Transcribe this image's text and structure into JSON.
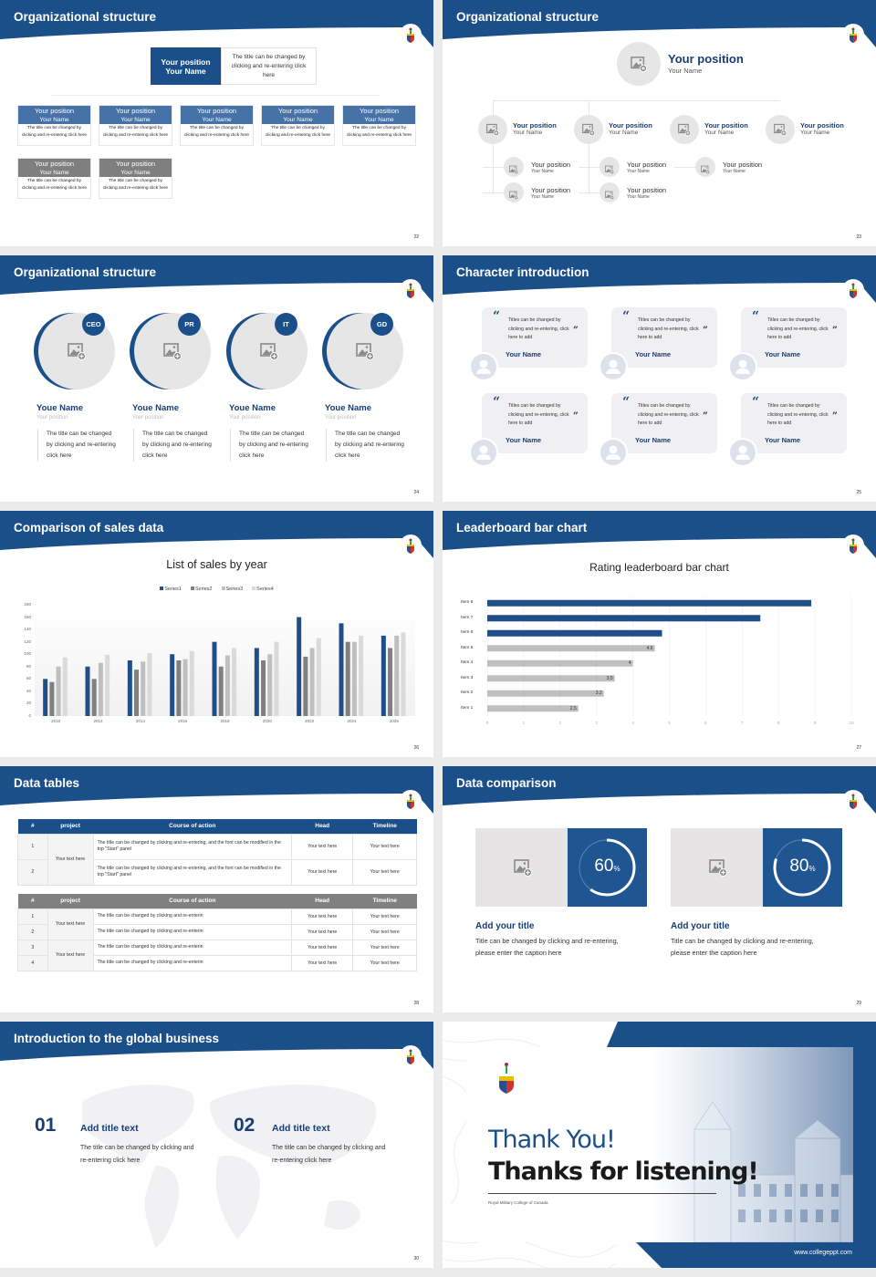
{
  "colors": {
    "brand": "#1b4f8a",
    "navy": "#173e75",
    "gray": "#7f7f7f"
  },
  "s22": {
    "title": "Organizational structure",
    "page": "22",
    "top": {
      "position": "Your position",
      "name": "Your Name",
      "desc": "The title can be changed by clicking and re-entering click here"
    },
    "members": [
      {
        "position": "Your position",
        "name": "Your Name",
        "desc": "The title can be changed by clicking and re-entering click here",
        "tone": "blue"
      },
      {
        "position": "Your position",
        "name": "Your Name",
        "desc": "The title can be changed by clicking and re-entering click here",
        "tone": "blue"
      },
      {
        "position": "Your position",
        "name": "Your Name",
        "desc": "The title can be changed by clicking and re-entering click here",
        "tone": "blue"
      },
      {
        "position": "Your position",
        "name": "Your Name",
        "desc": "The title can be changed by clicking and re-entering click here",
        "tone": "blue"
      },
      {
        "position": "Your position",
        "name": "Your Name",
        "desc": "The title can be changed by clicking and re-entering click here",
        "tone": "blue"
      },
      {
        "position": "Your position",
        "name": "Your Name",
        "desc": "The title can be changed by clicking and re-entering click here",
        "tone": "gray"
      },
      {
        "position": "Your position",
        "name": "Your Name",
        "desc": "The title can be changed by clicking and re-entering click here",
        "tone": "gray"
      }
    ]
  },
  "s23": {
    "title": "Organizational structure",
    "page": "23",
    "top": {
      "position": "Your position",
      "name": "Your Name"
    },
    "level2": [
      {
        "position": "Your position",
        "name": "Your Name"
      },
      {
        "position": "Your position",
        "name": "Your Name"
      },
      {
        "position": "Your position",
        "name": "Your Name"
      },
      {
        "position": "Your position",
        "name": "Your Name"
      }
    ],
    "level3": [
      {
        "position": "Your position",
        "name": "Your Name"
      },
      {
        "position": "Your position",
        "name": "Your Name"
      },
      {
        "position": "Your position",
        "name": "Your Name"
      },
      {
        "position": "Your position",
        "name": "Your Name"
      },
      {
        "position": "Your position",
        "name": "Your Name"
      }
    ]
  },
  "s24": {
    "title": "Organizational structure",
    "page": "24",
    "people": [
      {
        "badge": "CEO",
        "name": "Youe Name",
        "position": "Your position",
        "desc": "The title can be changed by clicking and re-entering click here"
      },
      {
        "badge": "PR",
        "name": "Youe Name",
        "position": "Your position",
        "desc": "The title can be changed by clicking and re-entering click here"
      },
      {
        "badge": "IT",
        "name": "Youe Name",
        "position": "Your position",
        "desc": "The title can be changed by clicking and re-entering click here"
      },
      {
        "badge": "GD",
        "name": "Youe Name",
        "position": "Your position",
        "desc": "The title can be changed by clicking and re-entering click here"
      }
    ]
  },
  "s25": {
    "title": "Character introduction",
    "page": "25",
    "cards": [
      {
        "quote": "Titles can be changed by clicking and re-entering, click here to add",
        "name": "Your Name"
      },
      {
        "quote": "Titles can be changed by clicking and re-entering, click here to add",
        "name": "Your Name"
      },
      {
        "quote": "Titles can be changed by clicking and re-entering, click here to add",
        "name": "Your Name"
      },
      {
        "quote": "Titles can be changed by clicking and re-entering, click here to add",
        "name": "Your Name"
      },
      {
        "quote": "Titles can be changed by clicking and re-entering, click here to add",
        "name": "Your Name"
      },
      {
        "quote": "Titles can be changed by clicking and re-entering, click here to add",
        "name": "Your Name"
      }
    ]
  },
  "s26": {
    "title": "Comparison of sales data",
    "page": "26"
  },
  "s27": {
    "title": "Leaderboard bar chart",
    "page": "27"
  },
  "chart_data": [
    {
      "type": "bar",
      "title": "List of sales by year",
      "categories": [
        "2010",
        "2012",
        "2014",
        "2016",
        "2018",
        "2020",
        "2022",
        "2024",
        "2026"
      ],
      "series": [
        {
          "name": "Series1",
          "color": "#1f4e89",
          "values": [
            60,
            80,
            90,
            100,
            120,
            110,
            160,
            150,
            130
          ]
        },
        {
          "name": "Series2",
          "color": "#808080",
          "values": [
            55,
            60,
            75,
            90,
            80,
            90,
            96,
            120,
            110
          ]
        },
        {
          "name": "Series3",
          "color": "#bfbfbf",
          "values": [
            80,
            86,
            88,
            92,
            98,
            100,
            110,
            120,
            130
          ]
        },
        {
          "name": "Series4",
          "color": "#dadada",
          "values": [
            95,
            99,
            102,
            105,
            110,
            120,
            126,
            130,
            135
          ]
        }
      ],
      "ylim": [
        0,
        180
      ],
      "yticks": [
        "0",
        "20",
        "40",
        "60",
        "80",
        "100",
        "120",
        "140",
        "160",
        "180"
      ],
      "legend": "top",
      "grid": false
    },
    {
      "type": "bar",
      "orientation": "horizontal",
      "title": "Rating leaderboard bar chart",
      "categories": [
        "Item 8",
        "Item 7",
        "Item 6",
        "Item 5",
        "Item 4",
        "Item 3",
        "Item 2",
        "Item 1"
      ],
      "values": [
        8.9,
        7.5,
        4.8,
        4.6,
        4,
        3.5,
        3.2,
        2.5
      ],
      "labels": [
        "",
        "",
        "",
        "4.6",
        "4",
        "3.5",
        "3.2",
        "2.5"
      ],
      "highlight_color": "#1f4e89",
      "base_color": "#bfbfbf",
      "xlim": [
        0,
        10
      ],
      "xticks": [
        "0",
        "1",
        "2",
        "3",
        "4",
        "5",
        "6",
        "7",
        "8",
        "9",
        "10"
      ],
      "grid": true
    }
  ],
  "s28": {
    "title": "Data tables",
    "page": "28",
    "headers": [
      "#",
      "project",
      "Course of action",
      "Head",
      "Timeline"
    ],
    "t1": {
      "project": "Your text here",
      "rows": [
        {
          "n": "1",
          "action": "The title can be changed by clicking and re-entering, and the font can be modified in the top \"Start\" panel",
          "head": "Your text here",
          "time": "Your text here"
        },
        {
          "n": "2",
          "action": "The title can be changed by clicking and re-entering, and the font can be modified in the top \"Start\" panel",
          "head": "Your text here",
          "time": "Your text here"
        }
      ]
    },
    "t2": {
      "projects": [
        "Your text here",
        "Your text here"
      ],
      "rows": [
        {
          "n": "1",
          "action": "The title can be changed by clicking and re-enterin",
          "head": "Your text here",
          "time": "Your text here"
        },
        {
          "n": "2",
          "action": "The title can be changed by clicking and re-enterin",
          "head": "Your text here",
          "time": "Your text here"
        },
        {
          "n": "3",
          "action": "The title can be changed by clicking and re-enterin",
          "head": "Your text here",
          "time": "Your text here"
        },
        {
          "n": "4",
          "action": "The title can be changed by clicking and re-enterin",
          "head": "Your text here",
          "time": "Your text here"
        }
      ]
    }
  },
  "s29": {
    "title": "Data comparison",
    "page": "29",
    "items": [
      {
        "percent": 60,
        "value": "60",
        "unit": "%",
        "title": "Add your title",
        "desc": "Title can be changed by clicking and re-entering, please enter the caption here"
      },
      {
        "percent": 80,
        "value": "80",
        "unit": "%",
        "title": "Add your title",
        "desc": "Title can be changed by clicking and re-entering, please enter the caption here"
      }
    ]
  },
  "s30": {
    "title": "Introduction to the global business",
    "page": "30",
    "items": [
      {
        "num": "01",
        "title": "Add title text",
        "desc": "The title can be changed by clicking and re-entering click here"
      },
      {
        "num": "02",
        "title": "Add title text",
        "desc": "The title can be changed by clicking and re-entering click here"
      }
    ]
  },
  "s31": {
    "thank": "Thank You!",
    "thanks": "Thanks for listening!",
    "college": "Royal Military College of Canada",
    "url": "www.collegeppt.com"
  }
}
